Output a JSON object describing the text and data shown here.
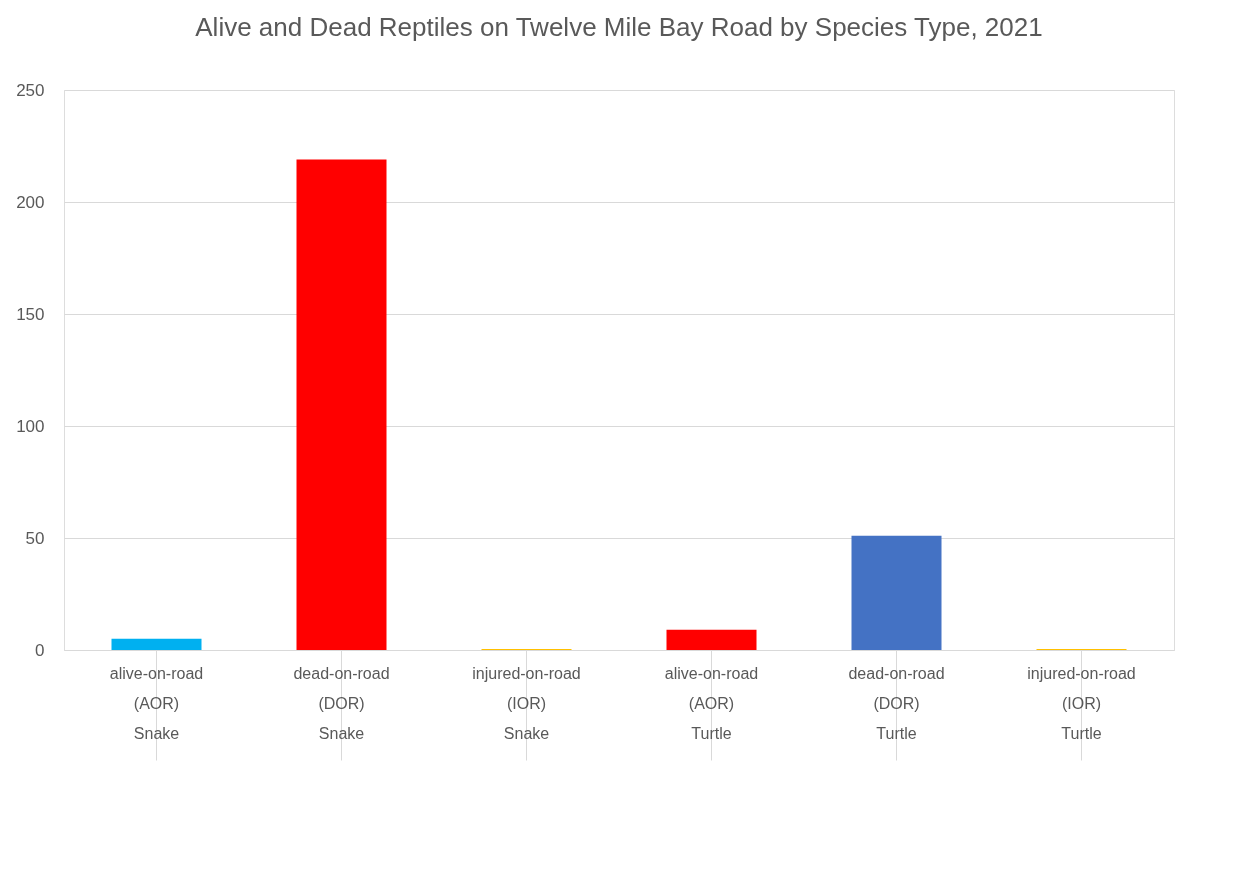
{
  "chart_data": {
    "type": "bar",
    "title": "Alive and Dead Reptiles on Twelve Mile Bay Road by Species Type, 2021",
    "categories": [
      "alive-on-road (AOR) Snake",
      "dead-on-road (DOR) Snake",
      "injured-on-road (IOR) Snake",
      "alive-on-road (AOR) Turtle",
      "dead-on-road (DOR) Turtle",
      "injured-on-road (IOR) Turtle"
    ],
    "values": [
      5,
      219,
      0.5,
      9,
      51,
      0.5
    ],
    "colors": [
      "#00b0f0",
      "#ff0000",
      "#ffc000",
      "#ff0000",
      "#4472c4",
      "#ffc000"
    ],
    "ylim": [
      0,
      250
    ],
    "yticks": [
      0,
      50,
      100,
      150,
      200,
      250
    ],
    "grid": "y"
  }
}
